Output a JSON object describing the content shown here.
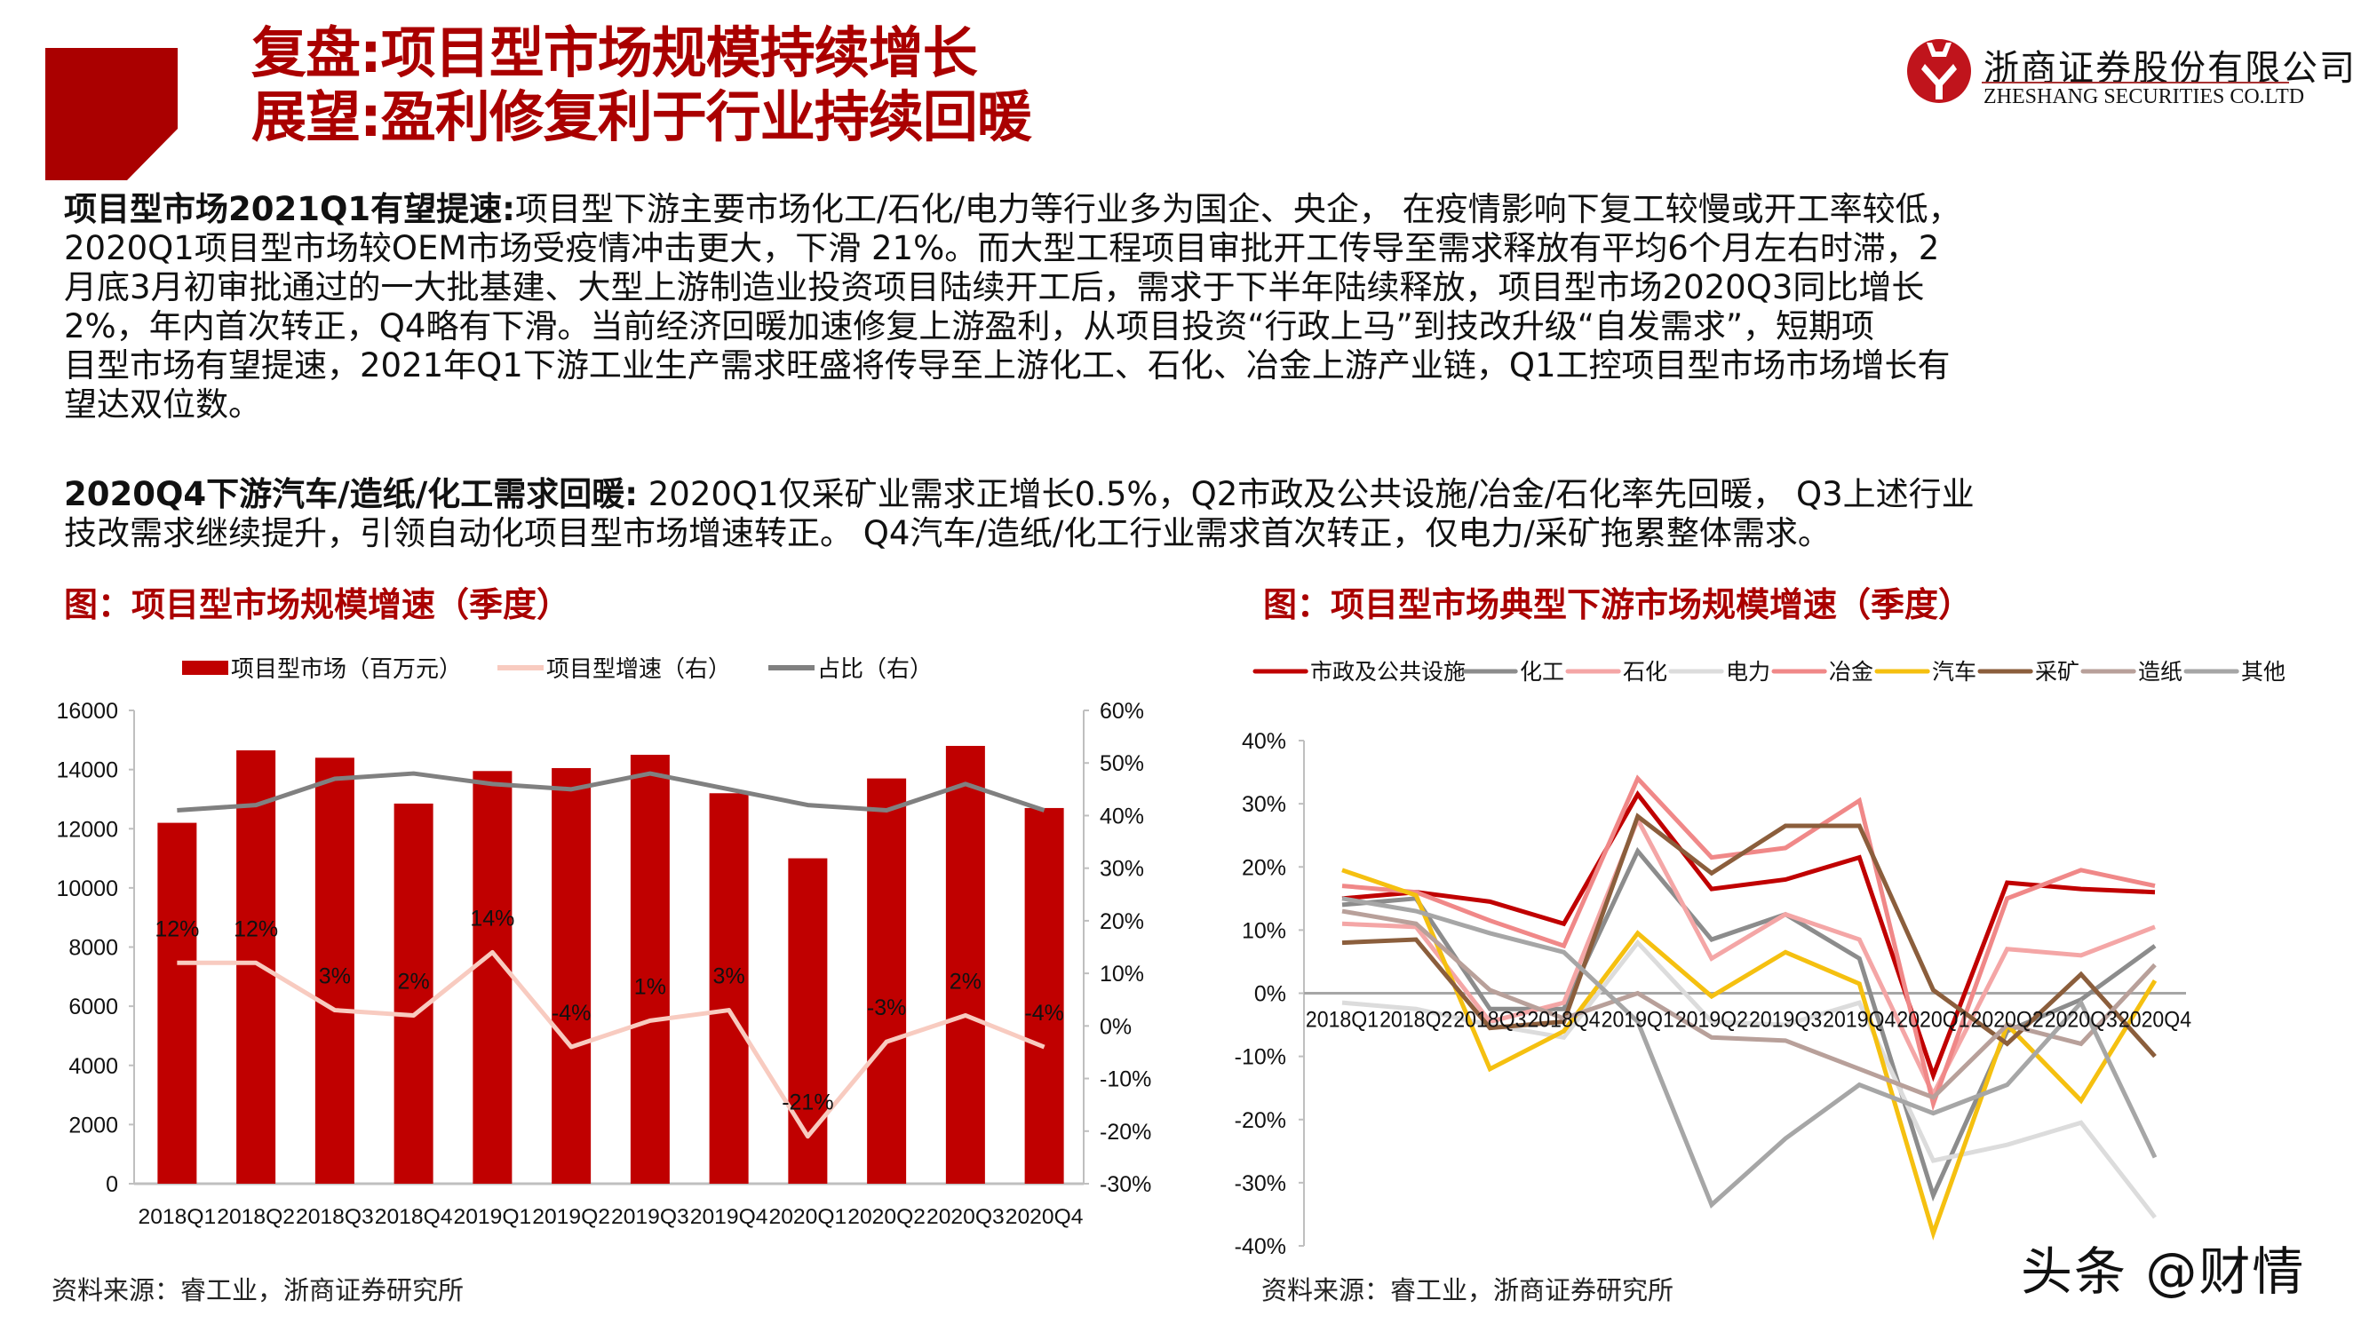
{
  "header": {
    "title_line1": "复盘:项目型市场规模持续增长",
    "title_line2": "展望:盈利修复利于行业持续回暖",
    "logo": {
      "icon": "zheshang-logo-icon",
      "name_cn": "浙商证券股份有限公司",
      "name_en": "ZHESHANG SECURITIES CO.LTD"
    }
  },
  "paragraphs": [
    {
      "lead": "项目型市场2021Q1有望提速:",
      "lines": [
        "项目型下游主要市场化工/石化/电力等行业多为国企、央企， 在疫情影响下复工较慢或开工率较低，",
        "2020Q1项目型市场较OEM市场受疫情冲击更大，下滑 21%。而大型工程项目审批开工传导至需求释放有平均6个月左右时滞，2",
        "月底3月初审批通过的一大批基建、大型上游制造业投资项目陆续开工后，需求于下半年陆续释放，项目型市场2020Q3同比增长",
        "2%，年内首次转正，Q4略有下滑。当前经济回暖加速修复上游盈利，从项目投资“行政上马”到技改升级“自发需求”，短期项",
        "目型市场有望提速，2021年Q1下游工业生产需求旺盛将传导至上游化工、石化、冶金上游产业链，Q1工控项目型市场市场增长有",
        "望达双位数。"
      ]
    },
    {
      "lead": "2020Q4下游汽车/造纸/化工需求回暖:",
      "lines": [
        " 2020Q1仅采矿业需求正增长0.5%，Q2市政及公共设施/冶金/石化率先回暖， Q3上述行业",
        "技改需求继续提升，引领自动化项目型市场增速转正。 Q4汽车/造纸/化工行业需求首次转正，仅电力/采矿拖累整体需求。"
      ]
    }
  ],
  "left_figure": {
    "title": "图：项目型市场规模增速（季度）",
    "source": "资料来源：睿工业，浙商证券研究所"
  },
  "right_figure": {
    "title": "图：项目型市场典型下游市场规模增速（季度）",
    "source": "资料来源：睿工业，浙商证券研究所"
  },
  "watermark": "头条 @财情",
  "colors": {
    "brand_red": "#aa0000",
    "bar_red": "#c00000",
    "growth_line": "#f8cbc0",
    "share_line": "#808080"
  },
  "chart_data": [
    {
      "type": "bar",
      "title": "图：项目型市场规模增速（季度）",
      "categories": [
        "2018Q1",
        "2018Q2",
        "2018Q3",
        "2018Q4",
        "2019Q1",
        "2019Q2",
        "2019Q3",
        "2019Q4",
        "2020Q1",
        "2020Q2",
        "2020Q3",
        "2020Q4"
      ],
      "series": [
        {
          "name": "项目型市场（百万元）",
          "type": "bar",
          "axis": "left",
          "color": "#c00000",
          "values": [
            12200,
            14650,
            14400,
            12850,
            13950,
            14050,
            14500,
            13200,
            11000,
            13700,
            14800,
            12700
          ]
        },
        {
          "name": "项目型增速（右）",
          "type": "line",
          "axis": "right",
          "color": "#f8cbc0",
          "values": [
            12,
            12,
            3,
            2,
            14,
            -4,
            1,
            3,
            -21,
            -3,
            2,
            -4
          ],
          "labels": [
            "12%",
            "12%",
            "3%",
            "2%",
            "14%",
            "-4%",
            "1%",
            "3%",
            "-21%",
            "-3%",
            "2%",
            "-4%"
          ]
        },
        {
          "name": "占比（右）",
          "type": "line",
          "axis": "right",
          "color": "#808080",
          "values": [
            41,
            42,
            47,
            48,
            46,
            45,
            48,
            45,
            42,
            41,
            46,
            41
          ]
        }
      ],
      "xlabel": "",
      "ylabel": "",
      "ylim": [
        0,
        16000
      ],
      "yticks": [
        "0",
        "2000",
        "4000",
        "6000",
        "8000",
        "10000",
        "12000",
        "14000",
        "16000"
      ],
      "y2lim": [
        -30,
        60
      ],
      "y2ticks": [
        "-30%",
        "-20%",
        "-10%",
        "0%",
        "10%",
        "20%",
        "30%",
        "40%",
        "50%",
        "60%"
      ],
      "legend_position": "top",
      "grid": false
    },
    {
      "type": "line",
      "title": "图：项目型市场典型下游市场规模增速（季度）",
      "categories": [
        "2018Q1",
        "2018Q2",
        "2018Q3",
        "2018Q4",
        "2019Q1",
        "2019Q2",
        "2019Q3",
        "2019Q4",
        "2020Q1",
        "2020Q2",
        "2020Q3",
        "2020Q4"
      ],
      "series": [
        {
          "name": "市政及公共设施",
          "color": "#c00000",
          "values": [
            15,
            16,
            14.5,
            11,
            31.5,
            16.5,
            18,
            21.5,
            -13,
            17.5,
            16.5,
            16
          ]
        },
        {
          "name": "化工",
          "color": "#8c8c8c",
          "values": [
            14,
            15,
            -2.5,
            -2.5,
            22.5,
            8.5,
            12.5,
            5.5,
            -32,
            -6,
            -1,
            7.5
          ]
        },
        {
          "name": "石化",
          "color": "#f4a6a6",
          "values": [
            11,
            10.5,
            -4.5,
            -1.5,
            27.5,
            5.5,
            12.5,
            8.5,
            -16,
            7,
            6,
            10.5
          ]
        },
        {
          "name": "电力",
          "color": "#dcdcdc",
          "values": [
            -1.5,
            -2.5,
            -5,
            -7,
            8,
            -4.5,
            -5,
            -1.5,
            -26.5,
            -24,
            -20.5,
            -35.5
          ]
        },
        {
          "name": "冶金",
          "color": "#f08888",
          "values": [
            17,
            16,
            11.5,
            7.5,
            34,
            21.5,
            23,
            30.5,
            -17.5,
            15,
            19.5,
            17
          ]
        },
        {
          "name": "汽车",
          "color": "#f5c010",
          "values": [
            19.5,
            15.5,
            -12,
            -6,
            9.5,
            -0.5,
            6.5,
            1.5,
            -38,
            -5,
            -17,
            2
          ]
        },
        {
          "name": "采矿",
          "color": "#8b5e3c",
          "values": [
            8,
            8.5,
            -5.5,
            -4.5,
            28,
            19,
            26.5,
            26.5,
            0.5,
            -8,
            3,
            -10
          ]
        },
        {
          "name": "造纸",
          "color": "#b8a09a",
          "values": [
            13,
            11,
            0.5,
            -4,
            0,
            -7,
            -7.5,
            -12,
            -16.5,
            -5,
            -8,
            4.5
          ]
        },
        {
          "name": "其他",
          "color": "#a6a6a6",
          "values": [
            15,
            13,
            9.5,
            6.5,
            -4.5,
            -33.5,
            -23,
            -14.5,
            -19,
            -14.5,
            -1.5,
            -26
          ]
        }
      ],
      "xlabel": "",
      "ylabel": "",
      "ylim": [
        -40,
        40
      ],
      "yticks": [
        "-40%",
        "-30%",
        "-20%",
        "-10%",
        "0%",
        "10%",
        "20%",
        "30%",
        "40%"
      ],
      "legend_position": "top",
      "grid": false
    }
  ]
}
